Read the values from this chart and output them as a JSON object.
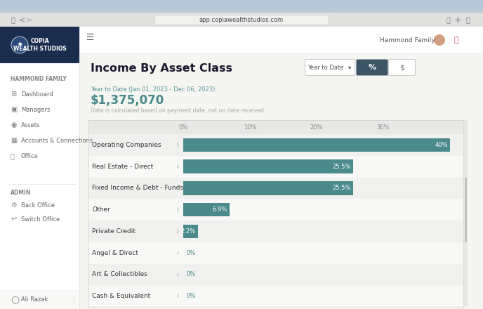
{
  "title": "Income By Asset Class",
  "subtitle_date": "Year to Date (Jan 01, 2023 - Dec 06, 2023)",
  "total_value": "$1,375,070",
  "note": "Data is calculated based on payment date, not on date received.",
  "ytd_label": "Year to Date",
  "pct_label": "%",
  "dollar_label": "$",
  "url": "app.copiawealthstudios.com",
  "user_label": "Hammond Family",
  "nav_items": [
    "Dashboard",
    "Managers",
    "Assets",
    "Accounts & Connections",
    "Office"
  ],
  "admin_items": [
    "Back Office",
    "Switch Office"
  ],
  "admin_user": "Ali Razak",
  "family_label": "HAMMOND FAMILY",
  "admin_label": "ADMIN",
  "copia_label": "COPIA\nWEALTH STUDIOS",
  "categories": [
    "Operating Companies",
    "Real Estate - Direct",
    "Fixed Income & Debt - Funds",
    "Other",
    "Private Credit",
    "Angel & Direct",
    "Art & Collectibles",
    "Cash & Equivalent"
  ],
  "values": [
    40.0,
    25.5,
    25.5,
    6.9,
    2.2,
    0.0,
    0.0,
    0.0
  ],
  "labels": [
    "40%",
    "25.5%",
    "25.5%",
    "6.9%",
    "2.2%",
    "0%",
    "0%",
    "0%"
  ],
  "bar_color": "#4a8a8a",
  "bg_color": "#f5f5f2",
  "sidebar_bg": "#ffffff",
  "copia_header_bg": "#1b2d4f",
  "row_bg_even": "#f0f0ee",
  "row_bg_odd": "#f8f8f6",
  "header_row_bg": "#ebebea",
  "grid_color": "#d8d8d6",
  "label_color": "#333333",
  "teal_color": "#4a8a8a",
  "title_color": "#1a1a2e",
  "subtitle_color": "#5a9a9a",
  "value_color": "#4a8a8a",
  "note_color": "#aaaaaa",
  "sidebar_text": "#555555",
  "nav_active_text": "#1a1a2e",
  "browser_bar_bg": "#e8e8e8",
  "browser_bg": "#d0d8e0",
  "active_btn_bg": "#3d5566",
  "white": "#ffffff",
  "xlim_max": 42,
  "xticks": [
    0,
    10,
    20,
    30
  ],
  "xtick_labels": [
    "0%",
    "10%",
    "20%",
    "30%"
  ]
}
